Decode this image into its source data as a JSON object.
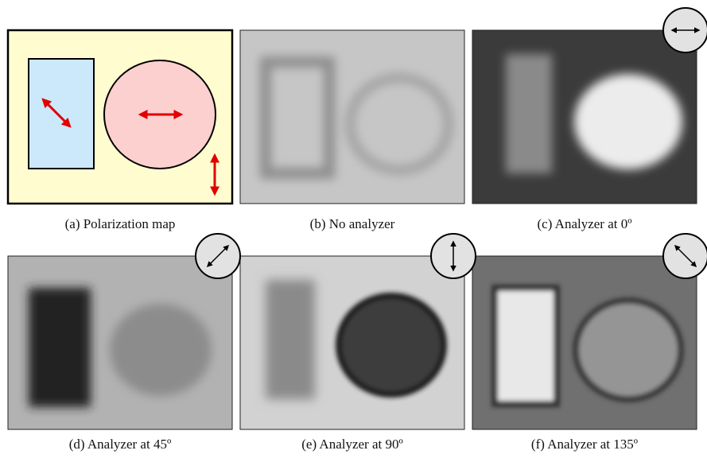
{
  "panels": [
    {
      "caption": "(a) Polarization map"
    },
    {
      "caption": "(b) No analyzer"
    },
    {
      "caption": "(c) Analyzer at 0º"
    },
    {
      "caption": "(d) Analyzer at 45º"
    },
    {
      "caption": "(e) Analyzer at 90º"
    },
    {
      "caption": "(f) Analyzer at 135º"
    }
  ]
}
